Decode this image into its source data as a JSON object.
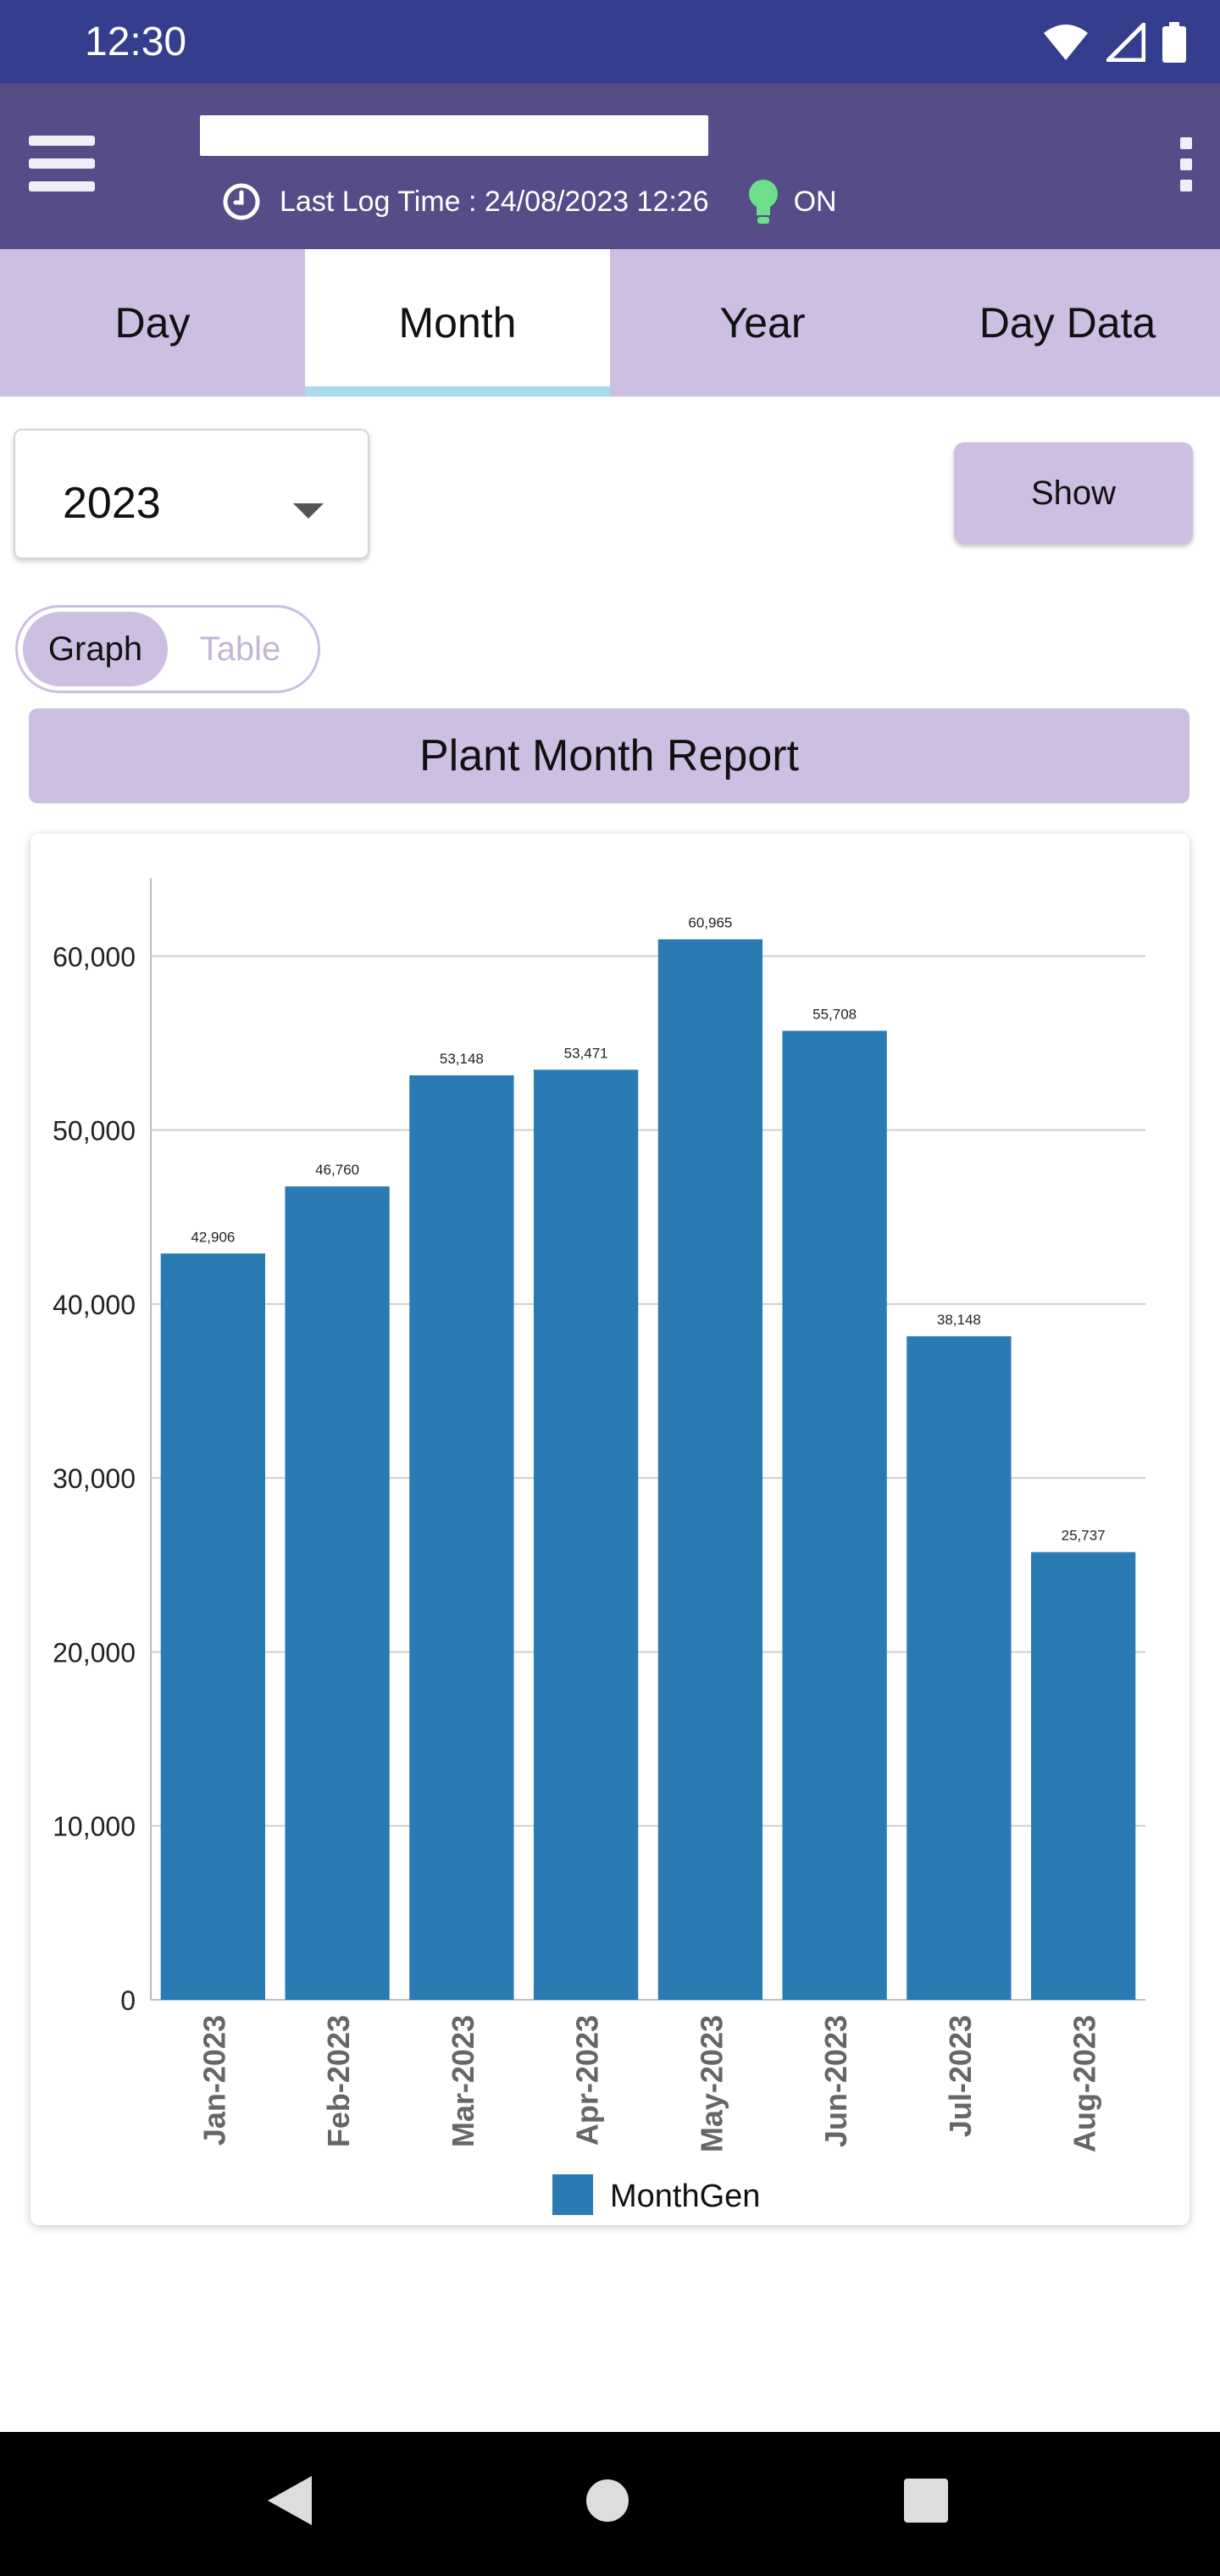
{
  "status_bar": {
    "time": "12:30",
    "icons": [
      "wifi-icon",
      "cell-signal-icon",
      "battery-icon"
    ]
  },
  "app_bar": {
    "last_log_label": "Last Log Time : 24/08/2023 12:26",
    "status_text": "ON",
    "status_color": "#6ede8a"
  },
  "tabs": [
    {
      "label": "Day",
      "active": false
    },
    {
      "label": "Month",
      "active": true
    },
    {
      "label": "Year",
      "active": false
    },
    {
      "label": "Day Data",
      "active": false
    }
  ],
  "controls": {
    "year_value": "2023",
    "show_label": "Show",
    "toggle": {
      "graph_label": "Graph",
      "table_label": "Table",
      "selected": "Graph"
    }
  },
  "report_title": "Plant Month Report",
  "chart_data": {
    "type": "bar",
    "categories": [
      "Jan-2023",
      "Feb-2023",
      "Mar-2023",
      "Apr-2023",
      "May-2023",
      "Jun-2023",
      "Jul-2023",
      "Aug-2023"
    ],
    "series": [
      {
        "name": "MonthGen",
        "values": [
          42906,
          46760,
          53148,
          53471,
          60965,
          55708,
          38148,
          25737
        ]
      }
    ],
    "value_labels": [
      "42,906",
      "46,760",
      "53,148",
      "53,471",
      "60,965",
      "55,708",
      "38,148",
      "25,737"
    ],
    "y_ticks": [
      "0",
      "10,000",
      "20,000",
      "30,000",
      "40,000",
      "50,000",
      "60,000"
    ],
    "ylim": [
      0,
      64500
    ],
    "grid": true,
    "legend": "bottom-center",
    "bar_color": "#2a7ab4",
    "xlabel": "",
    "ylabel": ""
  },
  "colors": {
    "status_bar": "#353d8f",
    "app_bar": "#564c87",
    "accent": "#cdbfe1",
    "tab_indicator": "#a9dbea"
  }
}
